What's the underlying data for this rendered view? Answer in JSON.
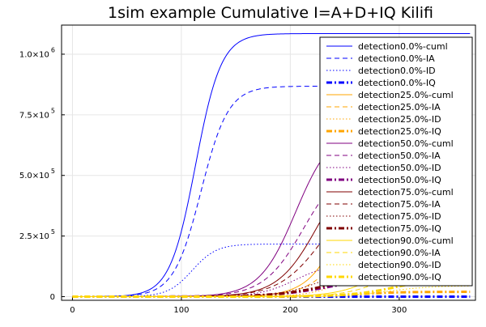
{
  "chart_data": {
    "type": "line",
    "title": "1sim example Cumulative I=A+D+IQ Kilifi",
    "xlabel": "",
    "ylabel": "",
    "xlim": [
      -10,
      370
    ],
    "ylim": [
      -15000,
      1120000
    ],
    "xticks": [
      0,
      100,
      200,
      300
    ],
    "xtick_labels": [
      "0",
      "100",
      "200",
      "300"
    ],
    "yticks": [
      0,
      250000,
      500000,
      750000,
      1000000
    ],
    "ytick_labels": [
      {
        "base": "0",
        "exp": ""
      },
      {
        "base": "2.5×10",
        "exp": "5"
      },
      {
        "base": "5.0×10",
        "exp": "5"
      },
      {
        "base": "7.5×10",
        "exp": "5"
      },
      {
        "base": "1.0×10",
        "exp": "6"
      }
    ],
    "grid": true,
    "legend_position": "right",
    "x_end": 365,
    "series": [
      {
        "name": "detection0.0%-cuml",
        "color": "#0000ff",
        "style": "solid",
        "width": 1,
        "final": 1085000,
        "midpoint": 113,
        "rate": 0.085
      },
      {
        "name": "detection0.0%-IA",
        "color": "#0000ff",
        "style": "dash",
        "width": 1,
        "final": 868000,
        "midpoint": 118,
        "rate": 0.08
      },
      {
        "name": "detection0.0%-ID",
        "color": "#0000ff",
        "style": "dot",
        "width": 1,
        "final": 217000,
        "midpoint": 110,
        "rate": 0.09
      },
      {
        "name": "detection0.0%-IQ",
        "color": "#0000ff",
        "style": "dashdot",
        "width": 3,
        "final": 0,
        "midpoint": 0,
        "rate": 0.1
      },
      {
        "name": "detection25.0%-cuml",
        "color": "#ffa500",
        "style": "solid",
        "width": 1,
        "final": 795000,
        "midpoint": 255,
        "rate": 0.06
      },
      {
        "name": "detection25.0%-IA",
        "color": "#ffa500",
        "style": "dash",
        "width": 1,
        "final": 625000,
        "midpoint": 262,
        "rate": 0.055
      },
      {
        "name": "detection25.0%-ID",
        "color": "#ffa500",
        "style": "dot",
        "width": 1,
        "final": 160000,
        "midpoint": 255,
        "rate": 0.06
      },
      {
        "name": "detection25.0%-IQ",
        "color": "#ffa500",
        "style": "dashdot",
        "width": 3,
        "final": 20000,
        "midpoint": 260,
        "rate": 0.05
      },
      {
        "name": "detection50.0%-cuml",
        "color": "#800080",
        "style": "solid",
        "width": 1,
        "final": 700000,
        "midpoint": 205,
        "rate": 0.06
      },
      {
        "name": "detection50.0%-IA",
        "color": "#800080",
        "style": "dash",
        "width": 1,
        "final": 560000,
        "midpoint": 212,
        "rate": 0.055
      },
      {
        "name": "detection50.0%-ID",
        "color": "#800080",
        "style": "dot",
        "width": 1,
        "final": 140000,
        "midpoint": 205,
        "rate": 0.06
      },
      {
        "name": "detection50.0%-IQ",
        "color": "#800080",
        "style": "dashdot",
        "width": 3,
        "final": 80000,
        "midpoint": 235,
        "rate": 0.04
      },
      {
        "name": "detection75.0%-cuml",
        "color": "#800000",
        "style": "solid",
        "width": 1,
        "final": 580000,
        "midpoint": 225,
        "rate": 0.055
      },
      {
        "name": "detection75.0%-IA",
        "color": "#800000",
        "style": "dash",
        "width": 1,
        "final": 470000,
        "midpoint": 230,
        "rate": 0.05
      },
      {
        "name": "detection75.0%-ID",
        "color": "#800000",
        "style": "dot",
        "width": 1,
        "final": 115000,
        "midpoint": 225,
        "rate": 0.055
      },
      {
        "name": "detection75.0%-IQ",
        "color": "#800000",
        "style": "dashdot",
        "width": 3,
        "final": 105000,
        "midpoint": 240,
        "rate": 0.04
      },
      {
        "name": "detection90.0%-cuml",
        "color": "#ffd700",
        "style": "solid",
        "width": 1,
        "final": 230000,
        "midpoint": 290,
        "rate": 0.05
      },
      {
        "name": "detection90.0%-IA",
        "color": "#ffd700",
        "style": "dash",
        "width": 1,
        "final": 180000,
        "midpoint": 295,
        "rate": 0.05
      },
      {
        "name": "detection90.0%-ID",
        "color": "#ffd700",
        "style": "dot",
        "width": 1,
        "final": 45000,
        "midpoint": 290,
        "rate": 0.05
      },
      {
        "name": "detection90.0%-IQ",
        "color": "#ffd700",
        "style": "dashdot",
        "width": 3,
        "final": 85000,
        "midpoint": 300,
        "rate": 0.045
      }
    ]
  }
}
